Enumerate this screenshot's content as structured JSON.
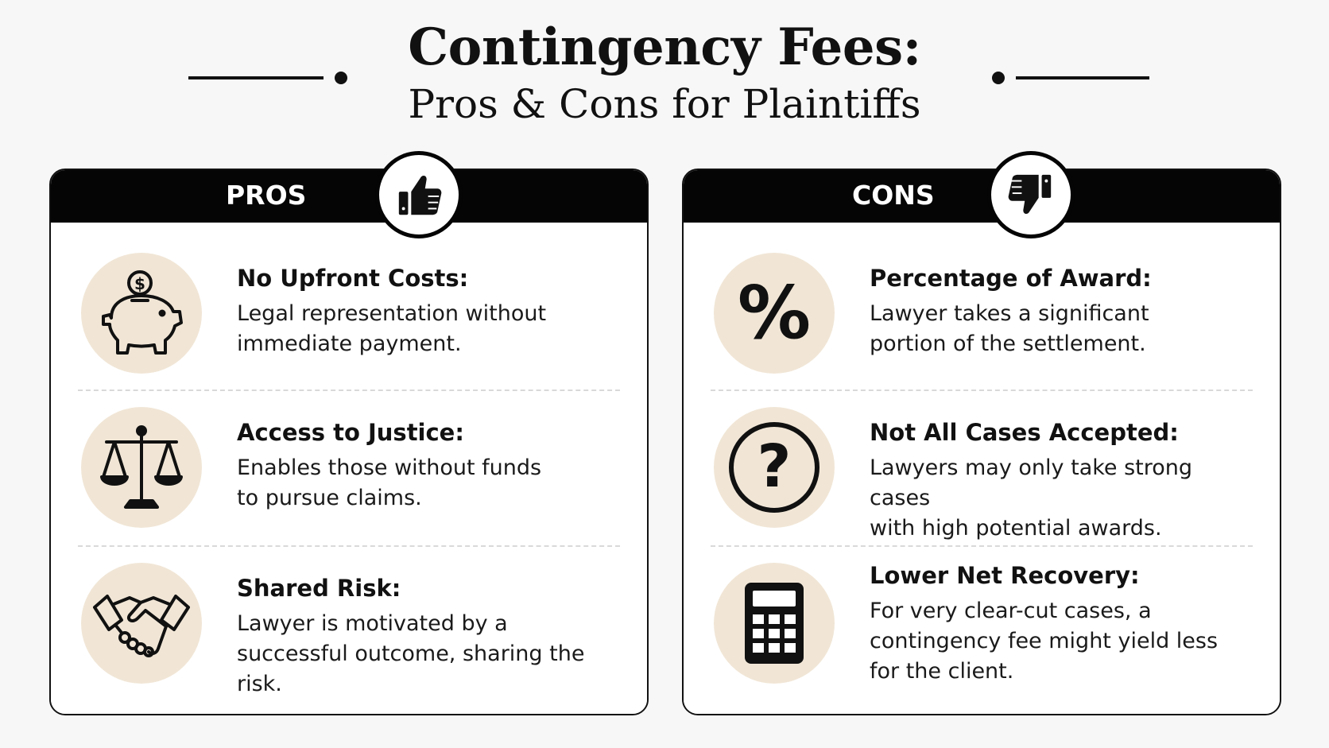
{
  "title": {
    "main": "Contingency Fees:",
    "sub": "Pros & Cons for Plaintiffs"
  },
  "pros": {
    "label": "PROS",
    "badge_icon": "thumbs-up-icon",
    "items": [
      {
        "icon": "piggy-bank-icon",
        "title": "No Upfront Costs:",
        "desc_lines": [
          "Legal representation without",
          "immediate payment."
        ]
      },
      {
        "icon": "scales-of-justice-icon",
        "title": "Access to Justice:",
        "desc_lines": [
          "Enables those without funds",
          "to pursue claims."
        ]
      },
      {
        "icon": "handshake-icon",
        "title": "Shared Risk:",
        "desc_lines": [
          "Lawyer is motivated by a",
          "successful outcome, sharing the risk."
        ]
      }
    ]
  },
  "cons": {
    "label": "CONS",
    "badge_icon": "thumbs-down-icon",
    "items": [
      {
        "icon": "percent-icon",
        "title": "Percentage of Award:",
        "desc_lines": [
          "Lawyer takes a significant",
          "portion of the settlement."
        ]
      },
      {
        "icon": "question-mark-icon",
        "title": "Not All Cases Accepted:",
        "desc_lines": [
          "Lawyers may only take strong cases",
          "with high potential awards."
        ]
      },
      {
        "icon": "calculator-icon",
        "title": "Lower Net Recovery:",
        "desc_lines": [
          "For very clear-cut cases, a",
          "contingency fee might yield less",
          "for the client."
        ]
      }
    ]
  },
  "colors": {
    "header": "#050505",
    "icon_bg": "#f1e6d6",
    "page_bg": "#f7f7f7"
  }
}
